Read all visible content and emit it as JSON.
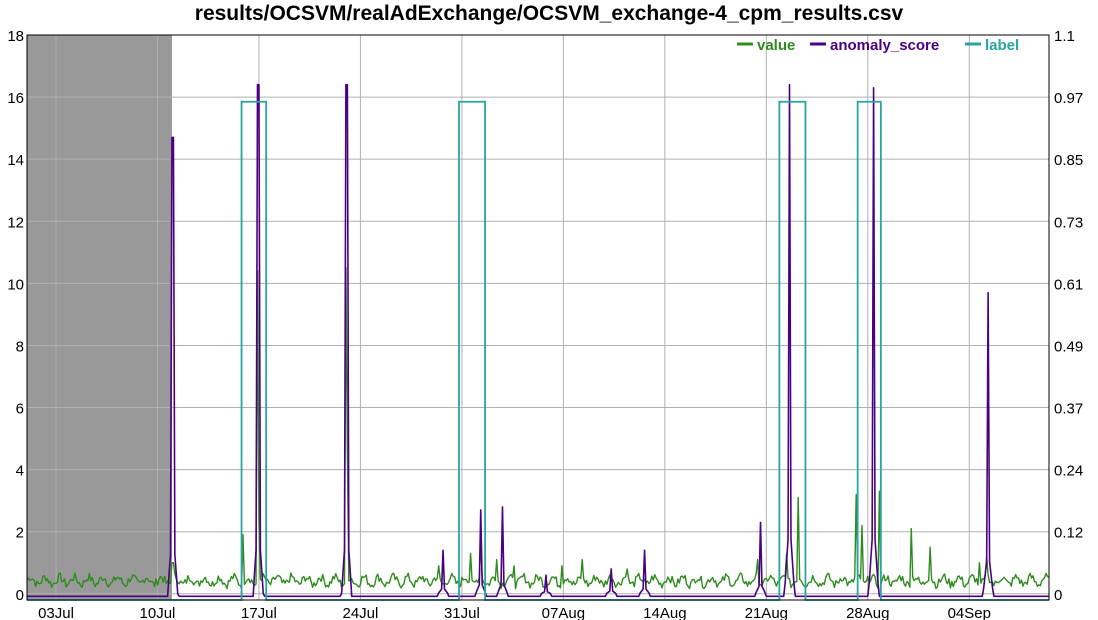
{
  "title": "results/OCSVM/realAdExchange/OCSVM_exchange-4_cpm_results.csv",
  "chart_data": {
    "type": "line",
    "title": "results/OCSVM/realAdExchange/OCSVM_exchange-4_cpm_results.csv",
    "x_ticks": [
      "03Jul",
      "10Jul",
      "17Jul",
      "24Jul",
      "31Jul",
      "07Aug",
      "14Aug",
      "21Aug",
      "28Aug",
      "04Sep"
    ],
    "x_range_days": [
      0,
      70.5
    ],
    "x_tick_days": [
      2.0,
      9.0,
      16.0,
      23.0,
      30.0,
      37.0,
      44.0,
      51.0,
      58.0,
      65.0
    ],
    "left_axis": {
      "ticks": [
        "0",
        "2",
        "4",
        "6",
        "8",
        "10",
        "12",
        "14",
        "16",
        "18"
      ],
      "ylim": [
        -0.2,
        18
      ]
    },
    "right_axis": {
      "ticks": [
        "0",
        "0.12",
        "0.24",
        "0.37",
        "0.49",
        "0.61",
        "0.73",
        "0.85",
        "0.97",
        "1.1"
      ],
      "ylim": [
        0,
        1.1
      ]
    },
    "grid": true,
    "legend_position": "top-right",
    "probation_region_days": [
      0,
      10.0
    ],
    "colors": {
      "value": "#2e8b1e",
      "anomaly_score": "#4b0082",
      "label": "#2aa3a3",
      "probation": "#999999",
      "grid": "#b0b0b0"
    },
    "series": [
      {
        "name": "value",
        "axis": "left",
        "baseline": 0.42,
        "spikes": [
          [
            10.05,
            1.0
          ],
          [
            14.9,
            1.9
          ],
          [
            15.9,
            10.4
          ],
          [
            16.0,
            2.4
          ],
          [
            22.0,
            10.5
          ],
          [
            22.1,
            4.6
          ],
          [
            28.4,
            0.9
          ],
          [
            30.6,
            1.3
          ],
          [
            31.3,
            1.6
          ],
          [
            32.4,
            1.1
          ],
          [
            33.6,
            0.9
          ],
          [
            36.9,
            0.9
          ],
          [
            38.3,
            1.1
          ],
          [
            41.4,
            0.8
          ],
          [
            50.4,
            1.1
          ],
          [
            52.4,
            1.3
          ],
          [
            53.2,
            3.1
          ],
          [
            57.2,
            3.2
          ],
          [
            57.6,
            2.2
          ],
          [
            58.8,
            3.3
          ],
          [
            61.0,
            2.1
          ],
          [
            62.3,
            1.5
          ],
          [
            65.7,
            1.0
          ],
          [
            66.2,
            1.2
          ]
        ]
      },
      {
        "name": "anomaly_score",
        "axis": "left",
        "spikes": [
          [
            10.05,
            14.7
          ],
          [
            15.95,
            16.4
          ],
          [
            22.05,
            16.4
          ],
          [
            28.7,
            1.4
          ],
          [
            31.3,
            2.7
          ],
          [
            32.8,
            2.8
          ],
          [
            35.8,
            0.6
          ],
          [
            40.3,
            0.8
          ],
          [
            42.6,
            1.4
          ],
          [
            50.6,
            2.3
          ],
          [
            52.6,
            16.4
          ],
          [
            58.4,
            16.3
          ],
          [
            66.3,
            9.7
          ]
        ]
      },
      {
        "name": "label",
        "axis": "right",
        "windows": [
          [
            14.8,
            16.5
          ],
          [
            29.8,
            31.6
          ],
          [
            51.9,
            53.7
          ],
          [
            57.3,
            58.9
          ]
        ],
        "high": 0.97
      }
    ]
  }
}
